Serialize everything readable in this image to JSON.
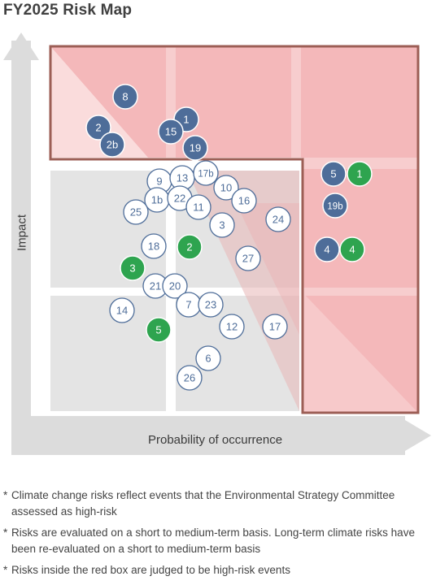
{
  "title": "FY2025 Risk Map",
  "axes": {
    "y_label": "Impact",
    "x_label": "Probability of occurrence"
  },
  "colors": {
    "blue": "#4e6d99",
    "green": "#2ea44f",
    "white_fill": "#ffffff",
    "outline": "#4e6d99",
    "red_zone": "#f4b8ba",
    "grey_zone": "#e4e4e4",
    "red_border": "#9c5e55",
    "arrow": "#dcdcdc"
  },
  "risks": [
    {
      "label": "8",
      "style": "blue"
    },
    {
      "label": "2",
      "style": "blue"
    },
    {
      "label": "2b",
      "style": "blue"
    },
    {
      "label": "1",
      "style": "blue"
    },
    {
      "label": "15",
      "style": "blue"
    },
    {
      "label": "19",
      "style": "blue"
    },
    {
      "label": "5",
      "style": "blue"
    },
    {
      "label": "1",
      "style": "green"
    },
    {
      "label": "19b",
      "style": "blue"
    },
    {
      "label": "4",
      "style": "blue"
    },
    {
      "label": "4",
      "style": "green"
    },
    {
      "label": "9",
      "style": "white"
    },
    {
      "label": "13",
      "style": "white"
    },
    {
      "label": "17b",
      "style": "white"
    },
    {
      "label": "10",
      "style": "white"
    },
    {
      "label": "16",
      "style": "white"
    },
    {
      "label": "1b",
      "style": "white"
    },
    {
      "label": "22",
      "style": "white"
    },
    {
      "label": "11",
      "style": "white"
    },
    {
      "label": "25",
      "style": "white"
    },
    {
      "label": "3",
      "style": "white"
    },
    {
      "label": "24",
      "style": "white"
    },
    {
      "label": "18",
      "style": "white"
    },
    {
      "label": "2",
      "style": "green"
    },
    {
      "label": "27",
      "style": "white"
    },
    {
      "label": "3",
      "style": "green"
    },
    {
      "label": "21",
      "style": "white"
    },
    {
      "label": "20",
      "style": "white"
    },
    {
      "label": "7",
      "style": "white"
    },
    {
      "label": "23",
      "style": "white"
    },
    {
      "label": "14",
      "style": "white"
    },
    {
      "label": "5",
      "style": "green"
    },
    {
      "label": "12",
      "style": "white"
    },
    {
      "label": "17",
      "style": "white"
    },
    {
      "label": "6",
      "style": "white"
    },
    {
      "label": "26",
      "style": "white"
    }
  ],
  "notes": [
    {
      "marker": "*",
      "text": "Climate change risks reflect events that the Environmental Strategy Committee assessed as high-risk"
    },
    {
      "marker": "*",
      "text": "Risks are evaluated on a short to medium-term basis. Long-term climate risks have been re-evaluated on a short to medium-term basis"
    },
    {
      "marker": "*",
      "text": "Risks inside the red box are judged to be high-risk events"
    }
  ]
}
